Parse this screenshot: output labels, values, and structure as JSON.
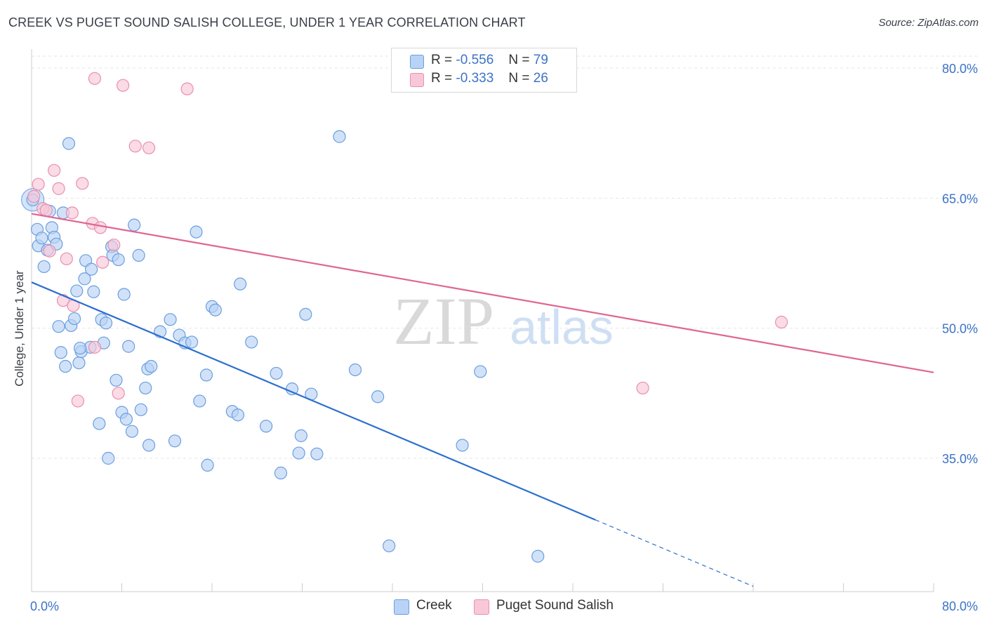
{
  "title": "CREEK VS PUGET SOUND SALISH COLLEGE, UNDER 1 YEAR CORRELATION CHART",
  "source": "Source: ZipAtlas.com",
  "watermark": {
    "zip": "ZIP",
    "atlas": "atlas"
  },
  "legend": {
    "r_label": "R =",
    "n_label": "N =",
    "series": [
      {
        "r": "-0.556",
        "n": "79"
      },
      {
        "r": "-0.333",
        "n": "26"
      }
    ]
  },
  "colors": {
    "creek_fill": "#b8d3f5",
    "creek_stroke": "#6a9ee0",
    "creek_line": "#2d6fce",
    "salish_fill": "#f8c8d8",
    "salish_stroke": "#e890b0",
    "salish_line": "#e06592",
    "tick_label": "#3b73c7",
    "grid": "#e6e6e6"
  },
  "chart_data": {
    "type": "scatter",
    "title": "CREEK VS PUGET SOUND SALISH COLLEGE, UNDER 1 YEAR CORRELATION CHART",
    "xlabel": "",
    "ylabel": "College, Under 1 year",
    "xlim": [
      0,
      80
    ],
    "ylim": [
      20,
      82
    ],
    "x_tick_labels": [
      {
        "value": 0,
        "label": "0.0%"
      },
      {
        "value": 80,
        "label": "80.0%"
      }
    ],
    "y_tick_labels": [
      {
        "value": 80,
        "label": "80.0%"
      },
      {
        "value": 65,
        "label": "65.0%"
      },
      {
        "value": 50,
        "label": "50.0%"
      },
      {
        "value": 35,
        "label": "35.0%"
      }
    ],
    "series": [
      {
        "name": "Creek",
        "r": -0.556,
        "n": 79,
        "trend": {
          "x0": 0,
          "y0": 55.3,
          "x1": 50,
          "y1": 27.9,
          "dash_to_x": 64
        },
        "points": [
          [
            0.1,
            64.8
          ],
          [
            0.5,
            61.4
          ],
          [
            0.6,
            59.5
          ],
          [
            0.9,
            60.4
          ],
          [
            1.1,
            57.1
          ],
          [
            1.4,
            59.0
          ],
          [
            1.6,
            63.5
          ],
          [
            1.8,
            61.6
          ],
          [
            2.0,
            60.5
          ],
          [
            2.2,
            59.7
          ],
          [
            2.4,
            50.2
          ],
          [
            2.6,
            47.2
          ],
          [
            2.8,
            63.3
          ],
          [
            3.0,
            45.6
          ],
          [
            3.3,
            71.3
          ],
          [
            3.5,
            50.3
          ],
          [
            3.8,
            51.1
          ],
          [
            4.0,
            54.3
          ],
          [
            4.2,
            46.0
          ],
          [
            4.4,
            47.3
          ],
          [
            4.7,
            55.7
          ],
          [
            4.8,
            57.8
          ],
          [
            5.2,
            47.8
          ],
          [
            5.3,
            56.8
          ],
          [
            5.5,
            54.2
          ],
          [
            6.0,
            39.0
          ],
          [
            6.2,
            51.0
          ],
          [
            6.4,
            48.3
          ],
          [
            6.6,
            50.6
          ],
          [
            6.8,
            35.0
          ],
          [
            7.1,
            59.4
          ],
          [
            7.2,
            58.4
          ],
          [
            7.5,
            44.0
          ],
          [
            7.7,
            57.9
          ],
          [
            8.0,
            40.3
          ],
          [
            8.2,
            53.9
          ],
          [
            8.4,
            39.5
          ],
          [
            8.6,
            47.9
          ],
          [
            8.9,
            38.1
          ],
          [
            9.1,
            61.9
          ],
          [
            9.5,
            58.4
          ],
          [
            9.7,
            40.6
          ],
          [
            10.1,
            43.1
          ],
          [
            10.3,
            45.3
          ],
          [
            10.6,
            45.6
          ],
          [
            10.4,
            36.5
          ],
          [
            11.4,
            49.6
          ],
          [
            12.3,
            51.0
          ],
          [
            12.7,
            37.0
          ],
          [
            13.1,
            49.2
          ],
          [
            13.6,
            48.3
          ],
          [
            14.2,
            48.4
          ],
          [
            14.6,
            61.1
          ],
          [
            14.9,
            41.6
          ],
          [
            15.5,
            44.6
          ],
          [
            15.6,
            34.2
          ],
          [
            16.0,
            52.5
          ],
          [
            16.3,
            52.1
          ],
          [
            17.8,
            40.4
          ],
          [
            18.3,
            40.0
          ],
          [
            18.5,
            55.1
          ],
          [
            19.5,
            48.4
          ],
          [
            20.8,
            38.7
          ],
          [
            21.7,
            44.8
          ],
          [
            22.1,
            33.3
          ],
          [
            23.1,
            43.0
          ],
          [
            23.7,
            35.6
          ],
          [
            23.9,
            37.6
          ],
          [
            24.3,
            51.6
          ],
          [
            24.8,
            42.4
          ],
          [
            25.3,
            35.5
          ],
          [
            27.3,
            72.1
          ],
          [
            28.7,
            45.2
          ],
          [
            30.7,
            42.1
          ],
          [
            31.7,
            24.9
          ],
          [
            38.2,
            36.5
          ],
          [
            39.8,
            45.0
          ],
          [
            44.9,
            23.7
          ],
          [
            4.3,
            47.7
          ]
        ]
      },
      {
        "name": "Puget Sound Salish",
        "r": -0.333,
        "n": 26,
        "trend": {
          "x0": 0,
          "y0": 63.2,
          "x1": 80,
          "y1": 44.9
        },
        "points": [
          [
            0.2,
            65.2
          ],
          [
            0.6,
            66.6
          ],
          [
            1.0,
            63.8
          ],
          [
            1.3,
            63.6
          ],
          [
            1.6,
            58.9
          ],
          [
            2.0,
            68.2
          ],
          [
            2.4,
            66.1
          ],
          [
            2.8,
            53.2
          ],
          [
            3.1,
            58.0
          ],
          [
            3.7,
            52.6
          ],
          [
            4.1,
            41.6
          ],
          [
            4.5,
            66.7
          ],
          [
            5.4,
            62.1
          ],
          [
            5.6,
            78.8
          ],
          [
            6.1,
            61.6
          ],
          [
            6.3,
            57.6
          ],
          [
            7.3,
            59.6
          ],
          [
            7.7,
            42.5
          ],
          [
            8.1,
            78.0
          ],
          [
            9.2,
            71.0
          ],
          [
            10.4,
            70.8
          ],
          [
            13.8,
            77.6
          ],
          [
            3.6,
            63.3
          ],
          [
            5.6,
            47.8
          ],
          [
            54.2,
            43.1
          ],
          [
            66.5,
            50.7
          ]
        ]
      }
    ]
  },
  "bottom_legend": [
    {
      "label": "Creek"
    },
    {
      "label": "Puget Sound Salish"
    }
  ]
}
